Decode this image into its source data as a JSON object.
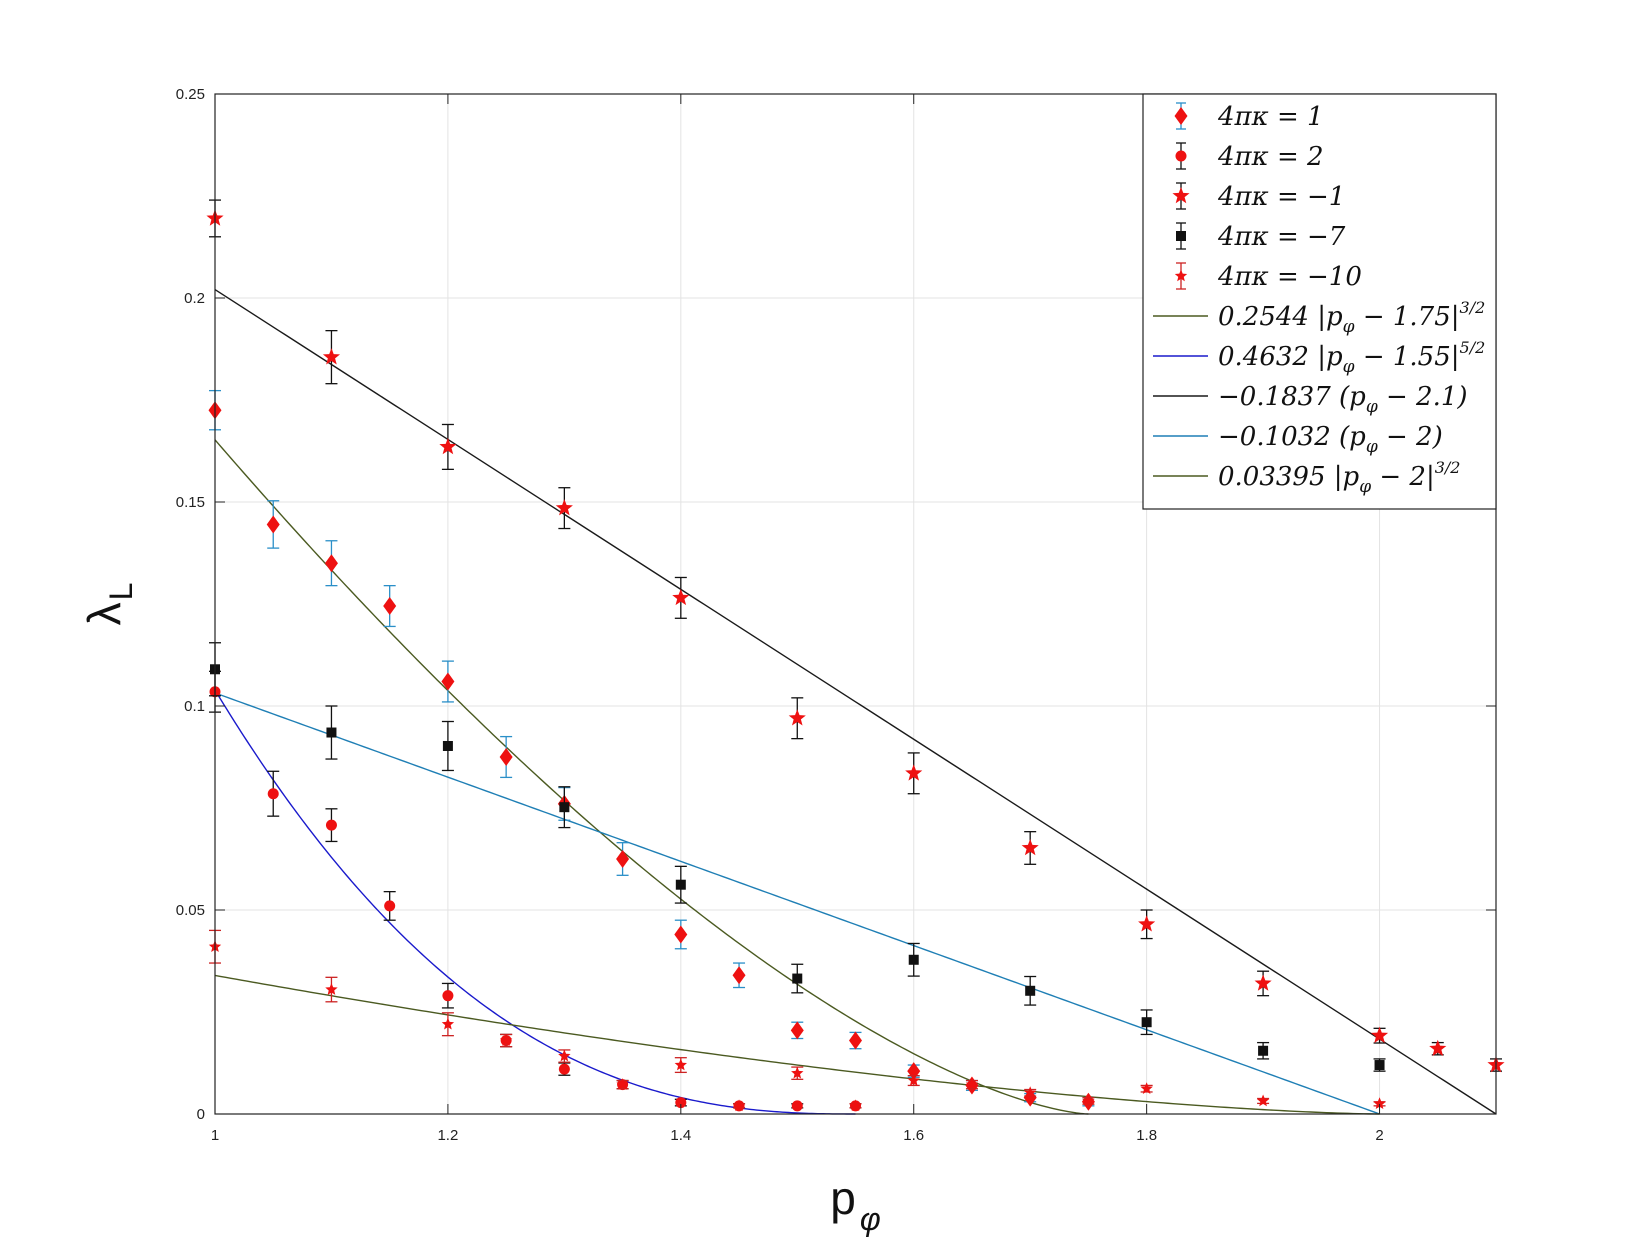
{
  "chart_data": {
    "type": "scatter",
    "xlabel": "p",
    "xlabel_sub": "φ",
    "ylabel": "λ",
    "ylabel_sub": "L",
    "xlim": [
      1,
      2.1
    ],
    "ylim": [
      0,
      0.25
    ],
    "grid": true,
    "legend_placement": "top-right",
    "x_ticks": [
      {
        "value": 1,
        "label": "1"
      },
      {
        "value": 1.2,
        "label": "1.2"
      },
      {
        "value": 1.4,
        "label": "1.4"
      },
      {
        "value": 1.6,
        "label": "1.6"
      },
      {
        "value": 1.8,
        "label": "1.8"
      },
      {
        "value": 2,
        "label": "2"
      }
    ],
    "y_ticks": [
      {
        "value": 0,
        "label": "0"
      },
      {
        "value": 0.05,
        "label": "0.05"
      },
      {
        "value": 0.1,
        "label": "0.1"
      },
      {
        "value": 0.15,
        "label": "0.15"
      },
      {
        "value": 0.2,
        "label": "0.2"
      },
      {
        "value": 0.25,
        "label": "0.25"
      }
    ],
    "series": [
      {
        "name": "4πκ = 1",
        "marker": "diamond",
        "color": "#ee1111",
        "error_color": "#2a8fc8",
        "x": [
          1,
          1.05,
          1.1,
          1.15,
          1.2,
          1.25,
          1.3,
          1.35,
          1.4,
          1.45,
          1.5,
          1.55,
          1.6,
          1.65,
          1.7,
          1.75
        ],
        "y": [
          0.1725,
          0.1445,
          0.135,
          0.1245,
          0.106,
          0.0875,
          0.076,
          0.0625,
          0.044,
          0.034,
          0.0205,
          0.018,
          0.0105,
          0.007,
          0.004,
          0.003
        ],
        "err": [
          0.0048,
          0.0058,
          0.0055,
          0.005,
          0.005,
          0.005,
          0.004,
          0.004,
          0.0035,
          0.003,
          0.002,
          0.002,
          0.0015,
          0.0012,
          0.001,
          0.001
        ]
      },
      {
        "name": "4πκ = 2",
        "marker": "circle",
        "color": "#ee1111",
        "error_color": "#111111",
        "x": [
          1,
          1.05,
          1.1,
          1.15,
          1.2,
          1.25,
          1.3,
          1.35,
          1.4,
          1.45,
          1.5,
          1.55
        ],
        "y": [
          0.1035,
          0.0785,
          0.0708,
          0.051,
          0.029,
          0.018,
          0.011,
          0.0072,
          0.0028,
          0.002,
          0.002,
          0.002
        ],
        "err": [
          0.005,
          0.0055,
          0.004,
          0.0035,
          0.003,
          0.0015,
          0.0015,
          0.001,
          0.0008,
          0.0005,
          0.0005,
          0.0005
        ]
      },
      {
        "name": "4πκ = −1",
        "marker": "star",
        "color": "#ee1111",
        "error_color": "#111111",
        "x": [
          1,
          1.1,
          1.2,
          1.3,
          1.4,
          1.5,
          1.6,
          1.7,
          1.8,
          1.9,
          2,
          2.05,
          2.1
        ],
        "y": [
          0.2195,
          0.1855,
          0.1635,
          0.1485,
          0.1265,
          0.097,
          0.0835,
          0.0652,
          0.0465,
          0.032,
          0.0192,
          0.016,
          0.012
        ],
        "err": [
          0.0045,
          0.0065,
          0.0055,
          0.005,
          0.005,
          0.005,
          0.005,
          0.004,
          0.0035,
          0.003,
          0.0018,
          0.0015,
          0.0015
        ]
      },
      {
        "name": "4πκ = −7",
        "marker": "square",
        "color": "#111111",
        "error_color": "#111111",
        "x": [
          1,
          1.1,
          1.2,
          1.3,
          1.4,
          1.5,
          1.6,
          1.7,
          1.8,
          1.9,
          2
        ],
        "y": [
          0.109,
          0.0935,
          0.0902,
          0.0752,
          0.0562,
          0.0332,
          0.0378,
          0.0302,
          0.0225,
          0.0155,
          0.012
        ],
        "err": [
          0.0065,
          0.0065,
          0.006,
          0.005,
          0.0045,
          0.0035,
          0.004,
          0.0035,
          0.003,
          0.002,
          0.0015
        ]
      },
      {
        "name": "4πκ = −10",
        "marker": "star-small",
        "color": "#ee1111",
        "error_color": "#cc2222",
        "x": [
          1,
          1.1,
          1.2,
          1.25,
          1.3,
          1.35,
          1.4,
          1.45,
          1.5,
          1.55,
          1.6,
          1.65,
          1.7,
          1.75,
          1.8,
          1.9,
          2
        ],
        "y": [
          0.041,
          0.0305,
          0.022,
          0.018,
          0.0142,
          0.0072,
          0.012,
          0.002,
          0.01,
          0.002,
          0.0082,
          0.0072,
          0.0052,
          0.0032,
          0.0062,
          0.0032,
          0.0025
        ],
        "err": [
          0.004,
          0.003,
          0.0028,
          0.0015,
          0.0015,
          0.001,
          0.0018,
          0.0005,
          0.0015,
          0.0005,
          0.0012,
          0.001,
          0.0008,
          0.0008,
          0.0008,
          0.0006,
          0.0005
        ]
      }
    ],
    "fits": [
      {
        "name": "0.2544 |p_φ − 1.75|^{3/2}",
        "label_main": "0.2544 |p",
        "label_sub": "φ",
        "label_rest": " − 1.75|",
        "label_sup": "3/2",
        "color": "#4b5a21",
        "coef": 0.2544,
        "center": 1.75,
        "power": 1.5,
        "kind": "abs",
        "x_range": [
          1,
          1.75
        ]
      },
      {
        "name": "0.4632 |p_φ − 1.55|^{5/2}",
        "label_main": "0.4632 |p",
        "label_sub": "φ",
        "label_rest": " − 1.55|",
        "label_sup": "5/2",
        "color": "#1a1acc",
        "coef": 0.4632,
        "center": 1.55,
        "power": 2.5,
        "kind": "abs",
        "x_range": [
          1,
          1.55
        ]
      },
      {
        "name": "−0.1837 (p_φ − 2.1)",
        "label_main": "−0.1837 (p",
        "label_sub": "φ",
        "label_rest": " − 2.1)",
        "label_sup": "",
        "color": "#1a1a1a",
        "coef": -0.1837,
        "center": 2.1,
        "power": 1,
        "kind": "linear",
        "x_range": [
          1,
          2.1
        ]
      },
      {
        "name": "−0.1032 (p_φ − 2)",
        "label_main": "−0.1032 (p",
        "label_sub": "φ",
        "label_rest": " − 2)",
        "label_sup": "",
        "color": "#1f7fb5",
        "coef": -0.1032,
        "center": 2,
        "power": 1,
        "kind": "linear",
        "x_range": [
          1,
          2
        ]
      },
      {
        "name": "0.03395 |p_φ − 2|^{3/2}",
        "label_main": "0.03395 |p",
        "label_sub": "φ",
        "label_rest": " − 2|",
        "label_sup": "3/2",
        "color": "#4b5a21",
        "coef": 0.03395,
        "center": 2,
        "power": 1.5,
        "kind": "abs",
        "x_range": [
          1,
          2
        ]
      }
    ]
  }
}
